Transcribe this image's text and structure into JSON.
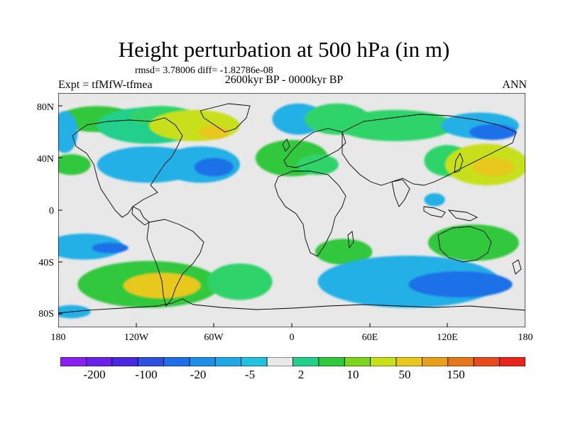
{
  "title": "Height perturbation at 500 hPa (in m)",
  "stats": "rmsd= 3.78006 diff= -1.82786e-08",
  "experiment": "Expt = tfMfW-tfmea",
  "period": "2600kyr BP - 0000kyr BP",
  "season": "ANN",
  "axes": {
    "lat_ticks": [
      "80N",
      "40N",
      "0",
      "40S",
      "80S"
    ],
    "lon_ticks": [
      "180",
      "120W",
      "60W",
      "0",
      "60E",
      "120E",
      "180"
    ]
  },
  "colorbar": {
    "colors": [
      "#8a20ee",
      "#6a22e8",
      "#4a28e0",
      "#2f4fe0",
      "#1f6fe8",
      "#1d8fe8",
      "#20a8e6",
      "#20c2e0",
      "#e8e8e8",
      "#22d08c",
      "#30c83c",
      "#7cd41c",
      "#c8e01a",
      "#e8c81a",
      "#e8a01a",
      "#e8761a",
      "#e84a1a",
      "#e8241a"
    ],
    "labels": [
      "-200",
      "-100",
      "-20",
      "-5",
      "2",
      "10",
      "50",
      "150"
    ]
  },
  "chart_data": {
    "type": "heatmap",
    "title": "Height perturbation at 500 hPa (in m)",
    "subtitle": "2600kyr BP - 0000kyr BP",
    "x_range": [
      -180,
      180
    ],
    "y_range": [
      -90,
      90
    ],
    "x_ticks": [
      "180",
      "120W",
      "60W",
      "0",
      "60E",
      "120E",
      "180"
    ],
    "y_ticks": [
      "80N",
      "40N",
      "0",
      "40S",
      "80S"
    ],
    "blobs": [
      {
        "lon": -150,
        "lat": 70,
        "rx": 30,
        "ry": 10,
        "value": 10
      },
      {
        "lon": -110,
        "lat": 65,
        "rx": 40,
        "ry": 14,
        "value": 2
      },
      {
        "lon": -100,
        "lat": 72,
        "rx": 25,
        "ry": 8,
        "value": 5
      },
      {
        "lon": -75,
        "lat": 65,
        "rx": 35,
        "ry": 12,
        "value": 20
      },
      {
        "lon": -60,
        "lat": 60,
        "rx": 12,
        "ry": 5,
        "value": 50
      },
      {
        "lon": 5,
        "lat": 70,
        "rx": 20,
        "ry": 12,
        "value": -5
      },
      {
        "lon": 35,
        "lat": 70,
        "rx": 25,
        "ry": 12,
        "value": 5
      },
      {
        "lon": 80,
        "lat": 65,
        "rx": 45,
        "ry": 12,
        "value": 5
      },
      {
        "lon": 145,
        "lat": 65,
        "rx": 30,
        "ry": 10,
        "value": -5
      },
      {
        "lon": 155,
        "lat": 60,
        "rx": 18,
        "ry": 6,
        "value": -20
      },
      {
        "lon": -175,
        "lat": 60,
        "rx": 10,
        "ry": 16,
        "value": -5
      },
      {
        "lon": -170,
        "lat": 35,
        "rx": 15,
        "ry": 8,
        "value": 10
      },
      {
        "lon": -110,
        "lat": 35,
        "rx": 40,
        "ry": 14,
        "value": -5
      },
      {
        "lon": -70,
        "lat": 35,
        "rx": 30,
        "ry": 14,
        "value": -5
      },
      {
        "lon": -60,
        "lat": 33,
        "rx": 15,
        "ry": 7,
        "value": -20
      },
      {
        "lon": 0,
        "lat": 40,
        "rx": 28,
        "ry": 14,
        "value": 10
      },
      {
        "lon": 20,
        "lat": 35,
        "rx": 16,
        "ry": 8,
        "value": 5
      },
      {
        "lon": 120,
        "lat": 38,
        "rx": 18,
        "ry": 12,
        "value": 5
      },
      {
        "lon": 150,
        "lat": 35,
        "rx": 32,
        "ry": 16,
        "value": 20
      },
      {
        "lon": 155,
        "lat": 33,
        "rx": 16,
        "ry": 7,
        "value": 50
      },
      {
        "lon": 110,
        "lat": 8,
        "rx": 8,
        "ry": 5,
        "value": -5
      },
      {
        "lon": -160,
        "lat": -28,
        "rx": 30,
        "ry": 10,
        "value": -5
      },
      {
        "lon": -140,
        "lat": -29,
        "rx": 14,
        "ry": 4,
        "value": -20
      },
      {
        "lon": 40,
        "lat": -32,
        "rx": 22,
        "ry": 10,
        "value": 10
      },
      {
        "lon": 140,
        "lat": -25,
        "rx": 35,
        "ry": 14,
        "value": 10
      },
      {
        "lon": -110,
        "lat": -57,
        "rx": 55,
        "ry": 18,
        "value": 10
      },
      {
        "lon": -100,
        "lat": -58,
        "rx": 30,
        "ry": 10,
        "value": 50
      },
      {
        "lon": -40,
        "lat": -55,
        "rx": 25,
        "ry": 14,
        "value": 5
      },
      {
        "lon": 90,
        "lat": -55,
        "rx": 70,
        "ry": 20,
        "value": -5
      },
      {
        "lon": 130,
        "lat": -57,
        "rx": 40,
        "ry": 10,
        "value": -20
      },
      {
        "lon": -170,
        "lat": -78,
        "rx": 15,
        "ry": 5,
        "value": -5
      }
    ]
  }
}
